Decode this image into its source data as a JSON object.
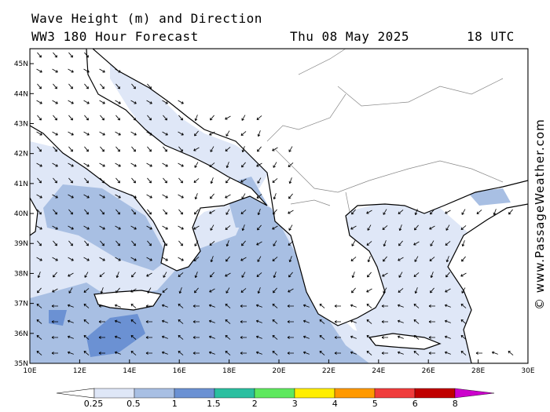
{
  "header": {
    "title": "Wave Height (m) and Direction",
    "subtitle": "WW3 180 Hour Forecast",
    "date": "Thu 08 May 2025",
    "time": "18 UTC"
  },
  "credit": "© www.PassageWeather.com",
  "map": {
    "lat_labels": [
      "45N",
      "44N",
      "43N",
      "42N",
      "41N",
      "40N",
      "39N",
      "38N",
      "37N",
      "36N",
      "35N"
    ],
    "lon_labels": [
      "10E",
      "12E",
      "14E",
      "16E",
      "18E",
      "20E",
      "22E",
      "24E",
      "26E",
      "28E",
      "30E"
    ],
    "lat_range": [
      35,
      45.5
    ],
    "lon_range": [
      10,
      30
    ]
  },
  "colorbar": {
    "labels": [
      "0.25",
      "0.5",
      "1",
      "1.5",
      "2",
      "3",
      "4",
      "5",
      "6",
      "8"
    ],
    "colors": [
      "#dfe7f7",
      "#a8bfe3",
      "#6b91d3",
      "#2bbfa0",
      "#5ee85e",
      "#ffee00",
      "#ff9900",
      "#f03c3c",
      "#c00000",
      "#cc00cc"
    ]
  }
}
